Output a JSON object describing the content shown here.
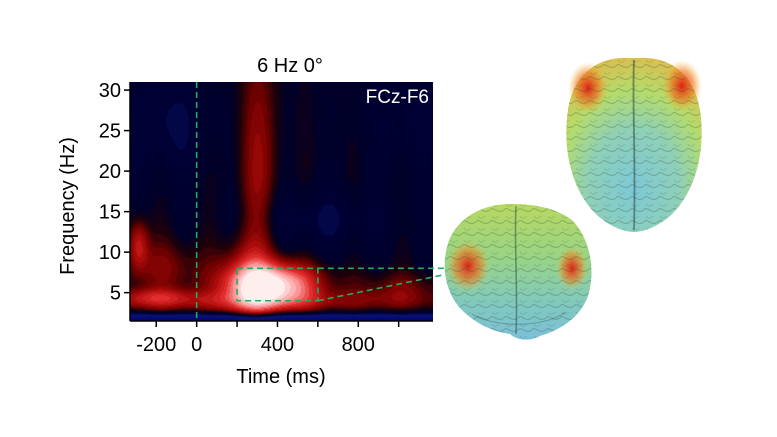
{
  "chart_data": {
    "type": "heatmap",
    "title": "6 Hz 0°",
    "channel_label": "FCz-F6",
    "xlabel": "Time (ms)",
    "ylabel": "Frequency (Hz)",
    "xlim": [
      -330,
      1170
    ],
    "ylim": [
      1.5,
      31
    ],
    "x_ticks": [
      -200,
      0,
      400,
      800
    ],
    "x_tick_labels": [
      "-200",
      "0",
      "400",
      "800"
    ],
    "x_minor_ticks": [
      200,
      600,
      1000
    ],
    "y_ticks": [
      5,
      10,
      15,
      20,
      25,
      30
    ],
    "y_tick_labels": [
      "5",
      "10",
      "15",
      "20",
      "25",
      "30"
    ],
    "stimulus_onset_ms": 0,
    "roi": {
      "time_ms": [
        200,
        600
      ],
      "freq_hz": [
        4,
        8
      ]
    },
    "colormap": [
      "#00005e",
      "#0a1060",
      "#000028",
      "#3a0000",
      "#8a0000",
      "#d81818",
      "#ffd8d8"
    ],
    "blobs": [
      {
        "t": 370,
        "f": 6.0,
        "st": 150,
        "sf": 1.8,
        "v": 2.6
      },
      {
        "t": 250,
        "f": 6.5,
        "st": 90,
        "sf": 3.5,
        "v": 0.8
      },
      {
        "t": 300,
        "f": 20,
        "st": 70,
        "sf": 12,
        "v": 0.6
      },
      {
        "t": -290,
        "f": 11,
        "st": 35,
        "sf": 2.2,
        "v": 0.9
      },
      {
        "t": -160,
        "f": 8,
        "st": 140,
        "sf": 2.5,
        "v": 0.5
      },
      {
        "t": 150,
        "f": 4,
        "st": 700,
        "sf": 0.9,
        "v": 0.6
      },
      {
        "t": 1000,
        "f": 5.5,
        "st": 160,
        "sf": 1.5,
        "v": 0.45
      },
      {
        "t": -200,
        "f": 4.5,
        "st": 120,
        "sf": 0.8,
        "v": 0.6
      },
      {
        "t": -150,
        "f": 26,
        "st": 150,
        "sf": 5,
        "v": -0.45
      },
      {
        "t": 600,
        "f": 14,
        "st": 250,
        "sf": 2.5,
        "v": -0.4
      },
      {
        "t": 1050,
        "f": 26,
        "st": 150,
        "sf": 5,
        "v": -0.3
      },
      {
        "t": 400,
        "f": 1.6,
        "st": 3000,
        "sf": 0.55,
        "v": -2.0
      }
    ]
  },
  "brains": {
    "top_view": {
      "name": "brain-top-view",
      "hot_region": "bilateral frontal"
    },
    "front_view": {
      "name": "brain-front-view",
      "hot_region": "bilateral frontal-lateral"
    }
  },
  "colors": {
    "roi_line": "#22aa66",
    "onset_line": "#22aa66",
    "brain_base_low": "#7ec8d8",
    "brain_base_mid": "#a8d870",
    "brain_hot": "#e02018"
  }
}
